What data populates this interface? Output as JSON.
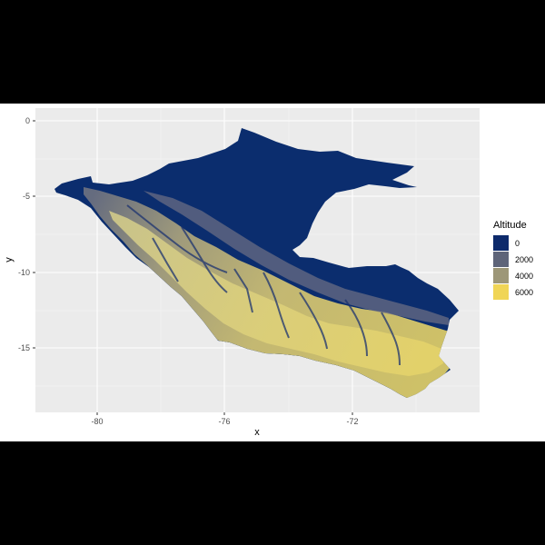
{
  "plot": {
    "panel_color": "#ebebeb",
    "grid_color": "#ffffff",
    "x_axis": {
      "title": "x",
      "ticks": [
        "-80",
        "-76",
        "-72"
      ],
      "range": [
        -82,
        -68.2
      ]
    },
    "y_axis": {
      "title": "y",
      "ticks": [
        "0",
        "-5",
        "-10",
        "-15"
      ],
      "range": [
        -19.2,
        0.6
      ]
    },
    "legend": {
      "title": "Altitude",
      "placement": "right",
      "entries": [
        {
          "label": "0",
          "color": "#0d2a6b"
        },
        {
          "label": "2000",
          "color": "#5e6479"
        },
        {
          "label": "4000",
          "color": "#9d9778"
        },
        {
          "label": "6000",
          "color": "#f0d556"
        }
      ]
    }
  },
  "map": {
    "lowland_color": "#0b2d6e",
    "highland_colors": [
      "#5e6479",
      "#8a8672",
      "#b5ab7b",
      "#dccb6b"
    ]
  }
}
